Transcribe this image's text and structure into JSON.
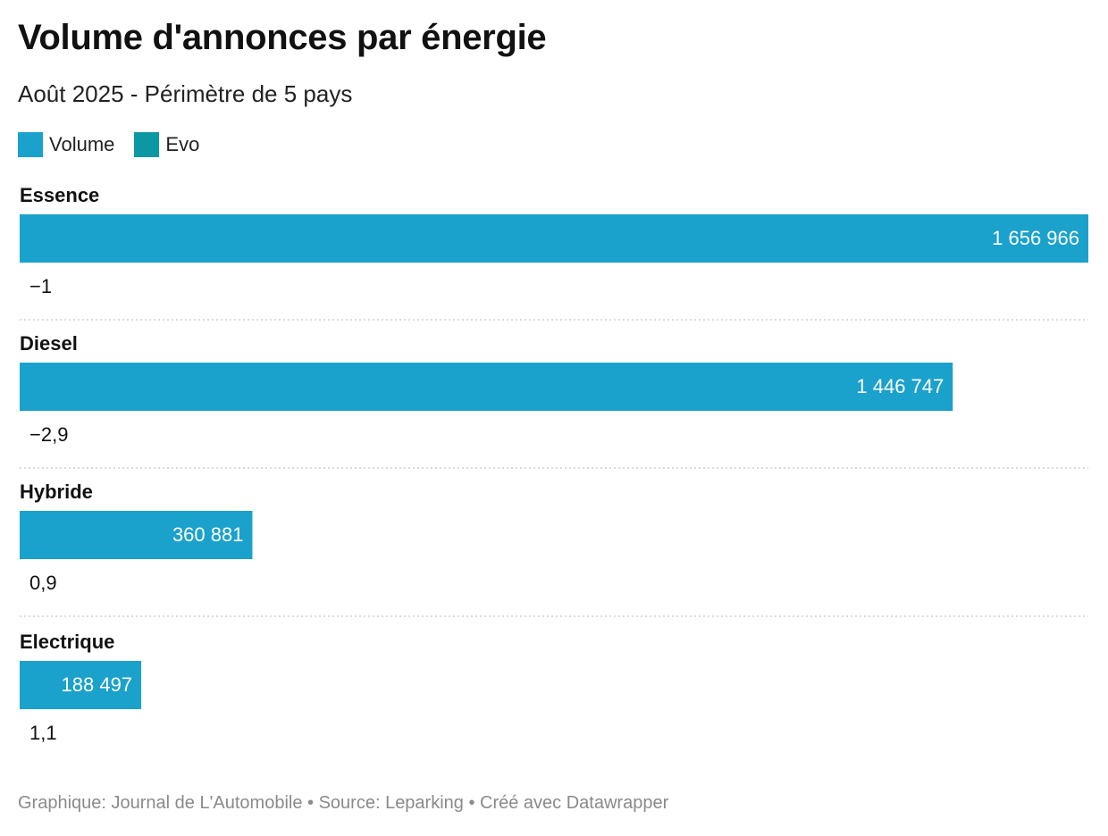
{
  "title": "Volume d'annonces par énergie",
  "subtitle": "Août 2025 - Périmètre de 5 pays",
  "footer": "Graphique: Journal de L'Automobile • Source: Leparking • Créé avec Datawrapper",
  "colors": {
    "volume": "#1aa1cc",
    "evo": "#0c97a4"
  },
  "chart_data": {
    "type": "bar",
    "orientation": "horizontal",
    "categories": [
      "Essence",
      "Diesel",
      "Hybride",
      "Electrique"
    ],
    "series": [
      {
        "name": "Volume",
        "values": [
          1656966,
          1446747,
          360881,
          188497
        ],
        "labels": [
          "1 656 966",
          "1 446 747",
          "360 881",
          "188 497"
        ]
      },
      {
        "name": "Evo",
        "values": [
          -1,
          -2.9,
          0.9,
          1.1
        ],
        "labels": [
          "−1",
          "−2,9",
          "0,9",
          "1,1"
        ]
      }
    ],
    "legend": "top-left",
    "grid": false
  }
}
